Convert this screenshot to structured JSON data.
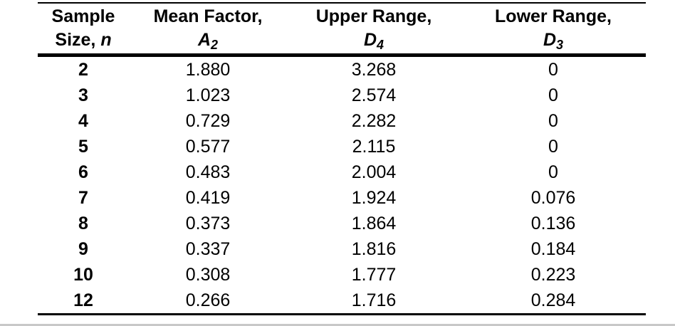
{
  "table": {
    "title_semantic": "Control chart constants",
    "columns": [
      {
        "title": "Sample",
        "line2_prefix": "Size, ",
        "symbol": "n",
        "subscript": ""
      },
      {
        "title": "Mean Factor,",
        "line2_prefix": "",
        "symbol": "A",
        "subscript": "2"
      },
      {
        "title": "Upper Range,",
        "line2_prefix": "",
        "symbol": "D",
        "subscript": "4"
      },
      {
        "title": "Lower Range,",
        "line2_prefix": "",
        "symbol": "D",
        "subscript": "3"
      }
    ],
    "rows": [
      [
        "2",
        "1.880",
        "3.268",
        "0"
      ],
      [
        "3",
        "1.023",
        "2.574",
        "0"
      ],
      [
        "4",
        "0.729",
        "2.282",
        "0"
      ],
      [
        "5",
        "0.577",
        "2.115",
        "0"
      ],
      [
        "6",
        "0.483",
        "2.004",
        "0"
      ],
      [
        "7",
        "0.419",
        "1.924",
        "0.076"
      ],
      [
        "8",
        "0.373",
        "1.864",
        "0.136"
      ],
      [
        "9",
        "0.337",
        "1.816",
        "0.184"
      ],
      [
        "10",
        "0.308",
        "1.777",
        "0.223"
      ],
      [
        "12",
        "0.266",
        "1.716",
        "0.284"
      ]
    ]
  },
  "colors": {
    "text": "#000000",
    "rule": "#000000",
    "background": "#ffffff",
    "bottom_band": "#c8c8c8"
  }
}
